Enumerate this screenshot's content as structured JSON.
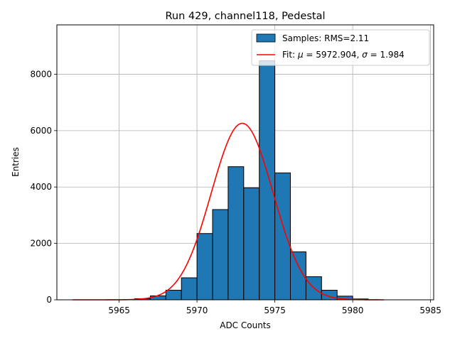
{
  "chart_data": {
    "type": "bar",
    "title": "Run 429, channel118, Pedestal",
    "xlabel": "ADC Counts",
    "ylabel": "Entries",
    "xlim": [
      5961,
      5985.2
    ],
    "ylim": [
      0,
      9750
    ],
    "xticks": [
      5965,
      5970,
      5975,
      5980,
      5985
    ],
    "yticks": [
      0,
      2000,
      4000,
      6000,
      8000
    ],
    "grid": true,
    "legend_position": "top-right",
    "bar_color": "#1f77b4",
    "fit_color": "#ff0000",
    "histogram": {
      "name": "Samples: RMS=2.11",
      "bin_width": 1,
      "bins": [
        {
          "start": 5966,
          "count": 40
        },
        {
          "start": 5967,
          "count": 140
        },
        {
          "start": 5968,
          "count": 340
        },
        {
          "start": 5969,
          "count": 780
        },
        {
          "start": 5970,
          "count": 2350
        },
        {
          "start": 5971,
          "count": 3200
        },
        {
          "start": 5972,
          "count": 4720
        },
        {
          "start": 5973,
          "count": 3970
        },
        {
          "start": 5974,
          "count": 8480
        },
        {
          "start": 5975,
          "count": 4500
        },
        {
          "start": 5976,
          "count": 1700
        },
        {
          "start": 5977,
          "count": 820
        },
        {
          "start": 5978,
          "count": 340
        },
        {
          "start": 5979,
          "count": 130
        },
        {
          "start": 5980,
          "count": 30
        }
      ]
    },
    "fit": {
      "name_prefix": "Fit: ",
      "mu_symbol": "μ",
      "mu_text": " = 5972.904, ",
      "sigma_symbol": "σ",
      "sigma_text": " = 1.984",
      "mu": 5972.904,
      "sigma": 1.984,
      "amplitude": 6260,
      "x_range": [
        5962,
        5982
      ]
    }
  }
}
